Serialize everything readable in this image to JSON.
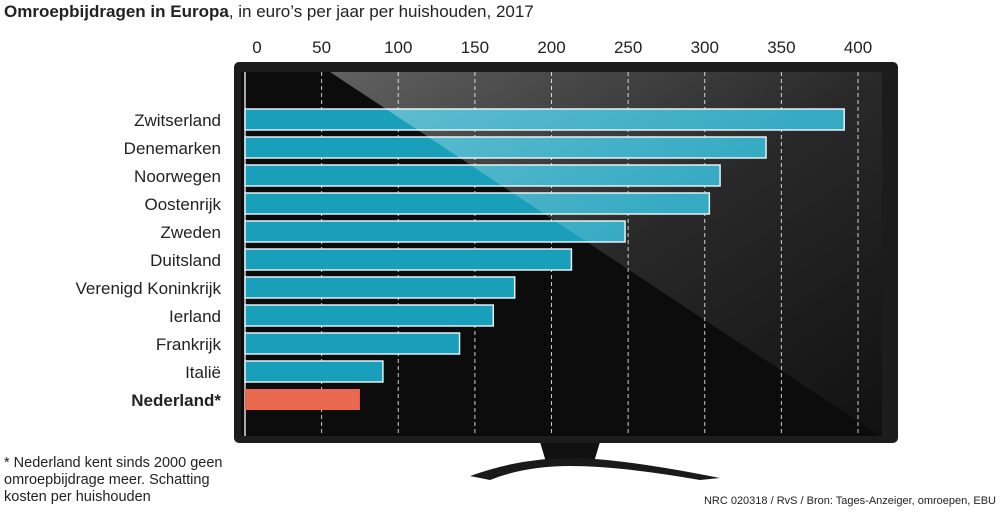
{
  "title": {
    "bold": "Omroepbijdragen in Europa",
    "rest": ", in euro’s per jaar per huishouden, 2017"
  },
  "colors": {
    "bar": "#1a9fbb",
    "highlight": "#e8694e",
    "screen": "#0c0c0c",
    "frame": "#1a1a1a"
  },
  "chart_data": {
    "type": "bar",
    "orientation": "horizontal",
    "categories": [
      "Zwitserland",
      "Denemarken",
      "Noorwegen",
      "Oostenrijk",
      "Zweden",
      "Duitsland",
      "Verenigd Koninkrijk",
      "Ierland",
      "Frankrijk",
      "Italië",
      "Nederland*"
    ],
    "values": [
      391,
      340,
      310,
      303,
      248,
      213,
      176,
      162,
      140,
      90,
      75
    ],
    "highlight": "Nederland*",
    "xlim": [
      0,
      400
    ],
    "xticks": [
      "0",
      "50",
      "100",
      "150",
      "200",
      "250",
      "300",
      "350",
      "400"
    ],
    "grid": true,
    "axis_position": "top"
  },
  "note": "* Nederland kent sinds 2000 geen omroepbijdrage meer. Schatting kosten per huishouden",
  "source": "NRC 020318 / RvS / Bron: Tages-Anzeiger, omroepen, EBU"
}
